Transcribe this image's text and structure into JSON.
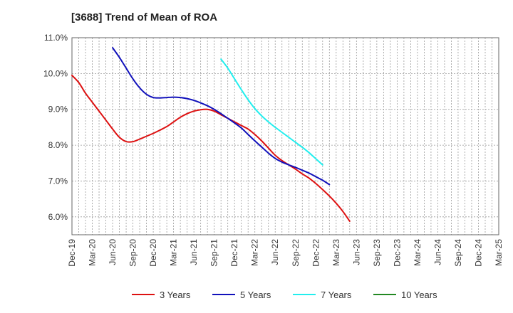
{
  "chart_data": {
    "type": "line",
    "title": "[3688]  Trend of Mean of ROA",
    "xlabel": "",
    "ylabel": "",
    "ylim": [
      5.5,
      11.0
    ],
    "y_ticks": [
      6.0,
      7.0,
      8.0,
      9.0,
      10.0,
      11.0
    ],
    "y_tick_labels": [
      "6.0%",
      "7.0%",
      "8.0%",
      "9.0%",
      "10.0%",
      "11.0%"
    ],
    "x_tick_labels": [
      "Dec-19",
      "Mar-20",
      "Jun-20",
      "Sep-20",
      "Dec-20",
      "Mar-21",
      "Jun-21",
      "Sep-21",
      "Dec-21",
      "Mar-22",
      "Jun-22",
      "Sep-22",
      "Dec-22",
      "Mar-23",
      "Jun-23",
      "Sep-23",
      "Dec-23",
      "Mar-24",
      "Jun-24",
      "Sep-24",
      "Dec-24",
      "Mar-25"
    ],
    "grid": true,
    "legend_position": "bottom",
    "series": [
      {
        "name": "3 Years",
        "color": "#dd1111",
        "start_index": 0,
        "values": [
          9.95,
          9.75,
          9.45,
          9.2,
          8.95,
          8.7,
          8.45,
          8.22,
          8.1,
          8.1,
          8.17,
          8.25,
          8.33,
          8.42,
          8.52,
          8.65,
          8.78,
          8.88,
          8.95,
          8.99,
          9.0,
          8.95,
          8.85,
          8.75,
          8.65,
          8.55,
          8.45,
          8.3,
          8.12,
          7.92,
          7.72,
          7.57,
          7.45,
          7.33,
          7.2,
          7.08,
          6.93,
          6.76,
          6.58,
          6.38,
          6.15,
          5.88
        ]
      },
      {
        "name": "5 Years",
        "color": "#1111bb",
        "start_index": 6,
        "values": [
          10.72,
          10.45,
          10.15,
          9.85,
          9.6,
          9.42,
          9.33,
          9.32,
          9.33,
          9.34,
          9.33,
          9.3,
          9.25,
          9.18,
          9.1,
          9.0,
          8.88,
          8.75,
          8.62,
          8.48,
          8.3,
          8.12,
          7.95,
          7.78,
          7.63,
          7.53,
          7.45,
          7.38,
          7.3,
          7.22,
          7.12,
          7.02,
          6.9
        ]
      },
      {
        "name": "7 Years",
        "color": "#22eeee",
        "start_index": 22,
        "values": [
          10.4,
          10.15,
          9.85,
          9.55,
          9.27,
          9.02,
          8.82,
          8.65,
          8.5,
          8.36,
          8.22,
          8.08,
          7.94,
          7.79,
          7.62,
          7.45
        ]
      },
      {
        "name": "10 Years",
        "color": "#228822",
        "start_index": 0,
        "values": []
      }
    ]
  }
}
